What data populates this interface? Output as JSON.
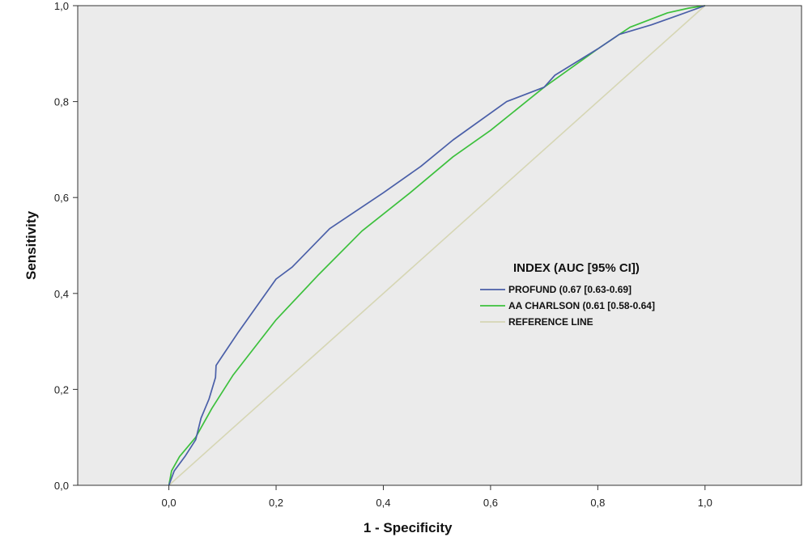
{
  "chart_data": {
    "type": "line",
    "xlabel": "1 - Specificity",
    "ylabel": "Sensitivity",
    "xlim": [
      -0.17,
      1.18
    ],
    "ylim": [
      0,
      1.0
    ],
    "x_ticks": [
      "0,0",
      "0,2",
      "0,4",
      "0,6",
      "0,8",
      "1,0"
    ],
    "x_tick_values": [
      0,
      0.2,
      0.4,
      0.6,
      0.8,
      1.0
    ],
    "y_ticks": [
      "0,0",
      "0,2",
      "0,4",
      "0,6",
      "0,8",
      "1,0"
    ],
    "y_tick_values": [
      0,
      0.2,
      0.4,
      0.6,
      0.8,
      1.0
    ],
    "legend": {
      "title": "INDEX (AUC [95% CI])",
      "position": "center-right"
    },
    "colors": {
      "plot_background": "#ebebeb",
      "profund": "#4a5fa8",
      "charlson": "#3cc03c",
      "reference": "#d6d6b4"
    },
    "series": [
      {
        "name": "PROFUND (0.67 [0.63-0.69]",
        "color": "#4a5fa8",
        "x": [
          0.0,
          0.01,
          0.03,
          0.05,
          0.06,
          0.075,
          0.087,
          0.088,
          0.1,
          0.13,
          0.2,
          0.23,
          0.3,
          0.4,
          0.47,
          0.53,
          0.63,
          0.7,
          0.72,
          0.8,
          0.84,
          0.9,
          0.95,
          1.0
        ],
        "y": [
          0.0,
          0.03,
          0.06,
          0.095,
          0.14,
          0.18,
          0.225,
          0.25,
          0.27,
          0.32,
          0.43,
          0.455,
          0.535,
          0.61,
          0.665,
          0.72,
          0.8,
          0.83,
          0.855,
          0.91,
          0.94,
          0.96,
          0.98,
          1.0
        ]
      },
      {
        "name": "AA CHARLSON (0.61 [0.58-0.64]",
        "color": "#3cc03c",
        "x": [
          0.0,
          0.005,
          0.02,
          0.05,
          0.08,
          0.12,
          0.2,
          0.28,
          0.36,
          0.45,
          0.53,
          0.6,
          0.7,
          0.8,
          0.86,
          0.93,
          0.97,
          1.0
        ],
        "y": [
          0.0,
          0.03,
          0.06,
          0.1,
          0.16,
          0.23,
          0.345,
          0.44,
          0.53,
          0.61,
          0.685,
          0.74,
          0.83,
          0.91,
          0.955,
          0.985,
          0.995,
          1.0
        ]
      },
      {
        "name": "REFERENCE LINE",
        "color": "#d6d6b4",
        "x": [
          0.0,
          1.0
        ],
        "y": [
          0.0,
          1.0
        ]
      }
    ]
  }
}
